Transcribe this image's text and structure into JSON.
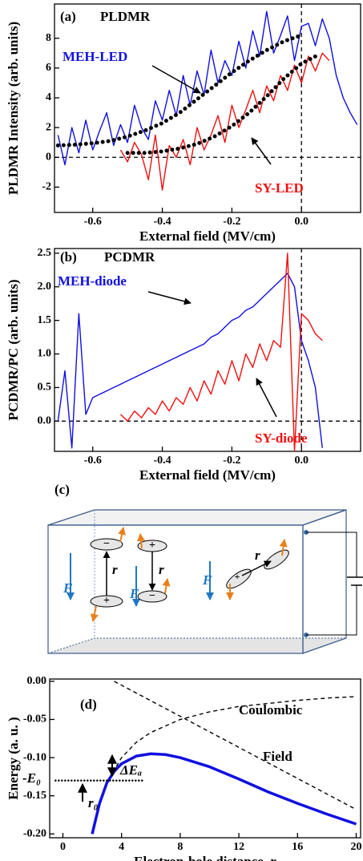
{
  "chart_data": [
    {
      "type": "line",
      "panel_label": "(a)",
      "title": "PLDMR",
      "x_label": "External field (MV/cm)",
      "y_label": "PLDMR Intensity (arb. units)",
      "xlim": [
        -0.71,
        0.17
      ],
      "ylim": [
        -3.7,
        10.3
      ],
      "xticks": [
        -0.6,
        -0.4,
        -0.2,
        {
          "value": 0,
          "label": "0.0"
        }
      ],
      "yticks": [
        -2,
        0,
        2,
        4,
        6,
        8
      ],
      "zero_lines": true,
      "series": [
        {
          "name": "MEH-LED",
          "color": "#1010e0",
          "style": "solid",
          "x": [
            -0.7,
            -0.68,
            -0.66,
            -0.64,
            -0.62,
            -0.6,
            -0.58,
            -0.56,
            -0.54,
            -0.52,
            -0.5,
            -0.48,
            -0.46,
            -0.44,
            -0.42,
            -0.4,
            -0.38,
            -0.36,
            -0.34,
            -0.32,
            -0.3,
            -0.28,
            -0.26,
            -0.24,
            -0.22,
            -0.2,
            -0.18,
            -0.16,
            -0.14,
            -0.12,
            -0.1,
            -0.08,
            -0.06,
            -0.04,
            -0.02,
            0.0,
            0.02,
            0.04,
            0.06,
            0.08,
            0.1,
            0.12,
            0.14,
            0.16
          ],
          "values": [
            1.5,
            -0.5,
            2.0,
            0.3,
            2.5,
            0.5,
            1.8,
            3.0,
            0.8,
            2.2,
            1.0,
            3.5,
            2.0,
            1.2,
            3.8,
            2.5,
            4.5,
            2.8,
            5.5,
            3.5,
            5.8,
            4.2,
            7.2,
            5.0,
            6.5,
            5.5,
            7.8,
            6.0,
            8.5,
            6.8,
            9.8,
            7.0,
            8.2,
            9.5,
            6.5,
            8.8,
            9.0,
            7.5,
            9.3,
            8.0,
            5.5,
            4.0,
            3.0,
            2.2
          ]
        },
        {
          "name": "SY-LED",
          "color": "#f01010",
          "style": "solid",
          "x": [
            -0.52,
            -0.5,
            -0.48,
            -0.46,
            -0.44,
            -0.42,
            -0.4,
            -0.38,
            -0.36,
            -0.34,
            -0.32,
            -0.3,
            -0.28,
            -0.26,
            -0.24,
            -0.22,
            -0.2,
            -0.18,
            -0.16,
            -0.14,
            -0.12,
            -0.1,
            -0.08,
            -0.06,
            -0.04,
            -0.02,
            0.0,
            0.02,
            0.04,
            0.06,
            0.08
          ],
          "values": [
            0.5,
            -0.3,
            1.0,
            0.2,
            -1.5,
            1.5,
            -2.2,
            0.8,
            0.0,
            1.2,
            -0.5,
            2.0,
            0.5,
            1.5,
            2.8,
            1.0,
            3.5,
            2.0,
            3.2,
            4.5,
            3.0,
            4.8,
            3.8,
            5.5,
            4.5,
            6.2,
            5.0,
            6.8,
            5.8,
            7.0,
            6.5
          ]
        },
        {
          "color": "#000000",
          "style": "dotted",
          "x": [
            -0.7,
            -0.65,
            -0.6,
            -0.55,
            -0.5,
            -0.45,
            -0.4,
            -0.35,
            -0.3,
            -0.25,
            -0.2,
            -0.15,
            -0.1,
            -0.05,
            0.0
          ],
          "values": [
            0.8,
            0.85,
            0.95,
            1.1,
            1.4,
            1.8,
            2.3,
            3.0,
            3.9,
            4.8,
            5.7,
            6.5,
            7.2,
            7.8,
            8.2
          ]
        },
        {
          "color": "#000000",
          "style": "dotted",
          "x": [
            -0.5,
            -0.45,
            -0.4,
            -0.35,
            -0.3,
            -0.25,
            -0.2,
            -0.15,
            -0.1,
            -0.05,
            0.0,
            0.05
          ],
          "values": [
            0.3,
            0.3,
            0.4,
            0.6,
            0.9,
            1.4,
            2.1,
            3.0,
            4.1,
            5.3,
            6.3,
            6.9
          ]
        }
      ]
    },
    {
      "type": "line",
      "panel_label": "(b)",
      "title": "PCDMR",
      "x_label": "External field (MV/cm)",
      "y_label": "PCDMR/PC (arb. units)",
      "xlim": [
        -0.71,
        0.17
      ],
      "ylim": [
        -0.45,
        2.57
      ],
      "xticks": [
        -0.6,
        -0.4,
        -0.2,
        {
          "value": 0,
          "label": "0.0"
        }
      ],
      "yticks": [
        {
          "value": 0,
          "label": "0.0"
        },
        {
          "value": 0.5,
          "label": "0.5"
        },
        {
          "value": 1,
          "label": "1.0"
        },
        {
          "value": 1.5,
          "label": "1.5"
        },
        {
          "value": 2,
          "label": "2.0"
        },
        {
          "value": 2.5,
          "label": "2.5"
        }
      ],
      "zero_lines": true,
      "series": [
        {
          "name": "MEH-diode",
          "color": "#1010e0",
          "style": "solid",
          "x": [
            -0.7,
            -0.68,
            -0.66,
            -0.64,
            -0.62,
            -0.6,
            -0.58,
            -0.56,
            -0.54,
            -0.52,
            -0.5,
            -0.48,
            -0.46,
            -0.44,
            -0.42,
            -0.4,
            -0.38,
            -0.36,
            -0.34,
            -0.32,
            -0.3,
            -0.28,
            -0.26,
            -0.24,
            -0.22,
            -0.2,
            -0.18,
            -0.16,
            -0.14,
            -0.12,
            -0.1,
            -0.08,
            -0.06,
            -0.04,
            -0.02,
            0.0,
            0.02,
            0.04,
            0.06
          ],
          "values": [
            0.0,
            0.75,
            -0.4,
            1.6,
            0.1,
            0.35,
            0.4,
            0.45,
            0.5,
            0.55,
            0.6,
            0.65,
            0.7,
            0.75,
            0.8,
            0.85,
            0.9,
            0.95,
            1.0,
            1.05,
            1.1,
            1.15,
            1.25,
            1.3,
            1.4,
            1.5,
            1.55,
            1.65,
            1.7,
            1.8,
            1.9,
            2.0,
            2.1,
            2.2,
            2.0,
            1.2,
            0.9,
            0.5,
            -0.4
          ]
        },
        {
          "name": "SY-diode",
          "color": "#f01010",
          "style": "solid",
          "x": [
            -0.52,
            -0.5,
            -0.48,
            -0.46,
            -0.44,
            -0.42,
            -0.4,
            -0.38,
            -0.36,
            -0.34,
            -0.32,
            -0.3,
            -0.28,
            -0.26,
            -0.24,
            -0.22,
            -0.2,
            -0.18,
            -0.16,
            -0.14,
            -0.12,
            -0.1,
            -0.08,
            -0.06,
            -0.04,
            -0.02,
            0.0,
            0.02,
            0.04,
            0.06
          ],
          "values": [
            0.1,
            0.0,
            0.15,
            0.05,
            0.2,
            0.1,
            0.3,
            0.15,
            0.35,
            0.25,
            0.5,
            0.3,
            0.6,
            0.4,
            0.75,
            0.55,
            0.9,
            0.6,
            1.0,
            0.8,
            1.15,
            0.9,
            1.2,
            1.1,
            2.5,
            -0.45,
            1.6,
            1.5,
            1.3,
            1.2
          ]
        }
      ]
    },
    {
      "type": "line",
      "panel_label": "(d)",
      "x_label": "Electron-hole distance, r",
      "y_label": "Energy (a. u. )",
      "xlim": [
        -0.9,
        20.3
      ],
      "ylim": [
        -0.205,
        0.003
      ],
      "xticks": [
        0,
        4,
        8,
        12,
        16,
        20
      ],
      "yticks": [
        {
          "value": 0,
          "label": "0.00"
        },
        {
          "value": -0.05,
          "label": "-0.05"
        },
        {
          "value": -0.1,
          "label": "-0.10"
        },
        {
          "value": -0.15,
          "label": "-0.15"
        },
        {
          "value": -0.2,
          "label": "-0.20"
        }
      ],
      "zero_lines": false,
      "annotations": [
        "-E₀",
        "ΔEₐ",
        "r₀"
      ],
      "series": [
        {
          "name": "Coulombic",
          "color": "#000000",
          "style": "dashed",
          "x": [
            2,
            2.5,
            3,
            4,
            5,
            6,
            8,
            10,
            12,
            14,
            16,
            18,
            20
          ],
          "values": [
            -0.2,
            -0.16,
            -0.133,
            -0.1,
            -0.08,
            -0.067,
            -0.05,
            -0.04,
            -0.033,
            -0.029,
            -0.025,
            -0.022,
            -0.02
          ]
        },
        {
          "name": "Field",
          "color": "#000000",
          "style": "dashed",
          "x": [
            3.5,
            20
          ],
          "values": [
            0,
            -0.168
          ]
        },
        {
          "color": "#1010e0",
          "style": "thick",
          "x": [
            2,
            2.5,
            3,
            3.5,
            4,
            5,
            6,
            7,
            8,
            10,
            12,
            14,
            16,
            18,
            20
          ],
          "values": [
            -0.2,
            -0.16,
            -0.133,
            -0.118,
            -0.108,
            -0.098,
            -0.095,
            -0.096,
            -0.1,
            -0.112,
            -0.128,
            -0.145,
            -0.16,
            -0.174,
            -0.187
          ]
        },
        {
          "color": "#000000",
          "style": "dotted-small",
          "x": [
            -0.5,
            5.5
          ],
          "values": [
            -0.13,
            -0.13
          ]
        }
      ]
    }
  ],
  "diagram": {
    "label": "(c)",
    "field_labels": [
      "F",
      "F",
      "F"
    ],
    "distance_labels": [
      "r",
      "r",
      "r"
    ],
    "plus": "+",
    "minus": "−"
  }
}
